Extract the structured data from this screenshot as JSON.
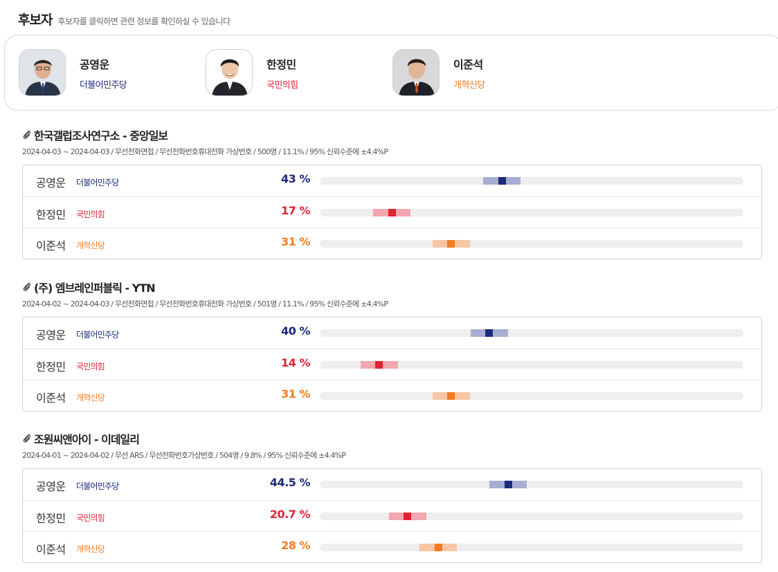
{
  "header": {
    "title": "후보자",
    "subtitle": "후보자를 클릭하면 관련 정보를 확인하실 수 있습니다"
  },
  "colors": {
    "blue": "#1a2a7a",
    "blue_light": "#a8aed1",
    "red": "#e02233",
    "red_light": "#f0a7ad",
    "orange": "#f47b20",
    "orange_light": "#f8c6a3"
  },
  "candidates": [
    {
      "name": "공영운",
      "party": "더불어민주당",
      "color": "#1a2a7a"
    },
    {
      "name": "한정민",
      "party": "국민의힘",
      "color": "#e02233"
    },
    {
      "name": "이준석",
      "party": "개혁신당",
      "color": "#f47b20"
    }
  ],
  "polls": [
    {
      "title": "한국갤럽조사연구소 - 중앙일보",
      "meta": "2024-04-03 ~ 2024-04-03 / 무선전화면접 / 무선전화번호휴대전화 가상번호 / 500명 / 11.1% / 95% 신뢰수준에 ±4.4%P",
      "margin": 4.4,
      "rows": [
        {
          "name": "공영운",
          "party": "더불어민주당",
          "pct_label": "43 %",
          "value": 43,
          "color": "blue"
        },
        {
          "name": "한정민",
          "party": "국민의힘",
          "pct_label": "17 %",
          "value": 17,
          "color": "red"
        },
        {
          "name": "이준석",
          "party": "개혁신당",
          "pct_label": "31 %",
          "value": 31,
          "color": "orange"
        }
      ]
    },
    {
      "title": "(주) 엠브레인퍼블릭 - YTN",
      "meta": "2024-04-02 ~ 2024-04-03 / 무선전화면접 / 무선전화번호휴대전화 가상번호 / 501명 / 11.1% / 95% 신뢰수준에 ±4.4%P",
      "margin": 4.4,
      "rows": [
        {
          "name": "공영운",
          "party": "더불어민주당",
          "pct_label": "40 %",
          "value": 40,
          "color": "blue"
        },
        {
          "name": "한정민",
          "party": "국민의힘",
          "pct_label": "14 %",
          "value": 14,
          "color": "red"
        },
        {
          "name": "이준석",
          "party": "개혁신당",
          "pct_label": "31 %",
          "value": 31,
          "color": "orange"
        }
      ]
    },
    {
      "title": "조원씨앤아이 - 이데일리",
      "meta": "2024-04-01 ~ 2024-04-02 / 무선 ARS / 무선전화번호가상번호 / 504명 / 9.8% / 95% 신뢰수준에 ±4.4%P",
      "margin": 4.4,
      "rows": [
        {
          "name": "공영운",
          "party": "더불어민주당",
          "pct_label": "44.5 %",
          "value": 44.5,
          "color": "blue"
        },
        {
          "name": "한정민",
          "party": "국민의힘",
          "pct_label": "20.7 %",
          "value": 20.7,
          "color": "red"
        },
        {
          "name": "이준석",
          "party": "개혁신당",
          "pct_label": "28 %",
          "value": 28,
          "color": "orange"
        }
      ]
    }
  ]
}
